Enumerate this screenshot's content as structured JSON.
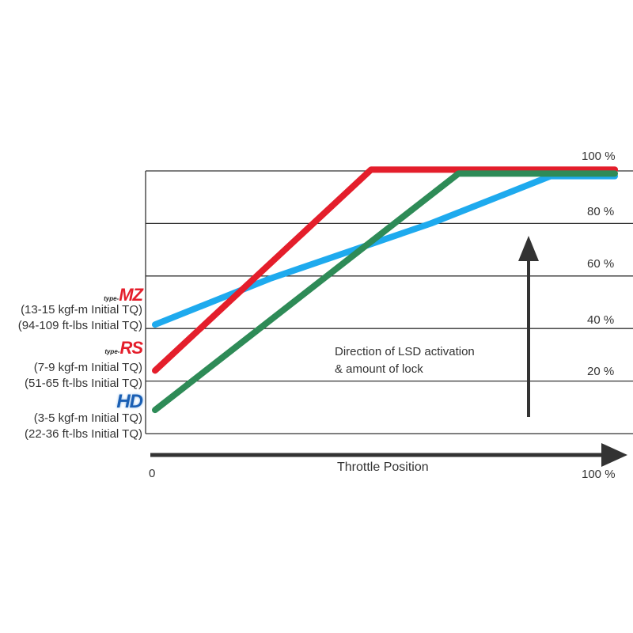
{
  "chart_data": {
    "type": "line",
    "xlabel": "Throttle Position",
    "x_tick_labels": [
      "0",
      "100 %"
    ],
    "y_tick_labels": [
      "20 %",
      "40 %",
      "60 %",
      "80 %",
      "100 %"
    ],
    "xlim": [
      0,
      100
    ],
    "ylim": [
      0,
      100
    ],
    "grid": true,
    "annotation": [
      "Direction of LSD activation",
      "& amount of lock"
    ],
    "series": [
      {
        "name": "type-MZ",
        "color": "#1eaaee",
        "x": [
          0,
          25,
          60,
          86,
          100
        ],
        "y": [
          41.5,
          59,
          80,
          98,
          98
        ]
      },
      {
        "name": "type-RS",
        "color": "#e41e2b",
        "x": [
          0,
          47,
          100
        ],
        "y": [
          24,
          100.5,
          100.5
        ]
      },
      {
        "name": "HD",
        "color": "#2e8b57",
        "x": [
          0,
          66,
          100
        ],
        "y": [
          9,
          99,
          99
        ]
      }
    ]
  },
  "legend": [
    {
      "logo_prefix": "type-",
      "logo": "MZ",
      "line1": "(13-15 kgf-m Initial TQ)",
      "line2": "(94-109 ft-lbs Initial TQ)"
    },
    {
      "logo_prefix": "type-",
      "logo": "RS",
      "line1": "(7-9 kgf-m Initial TQ)",
      "line2": "(51-65 ft-lbs Initial TQ)"
    },
    {
      "logo_prefix": "",
      "logo": "HD",
      "line1": "(3-5 kgf-m Initial TQ)",
      "line2": "(22-36 ft-lbs Initial TQ)"
    }
  ]
}
